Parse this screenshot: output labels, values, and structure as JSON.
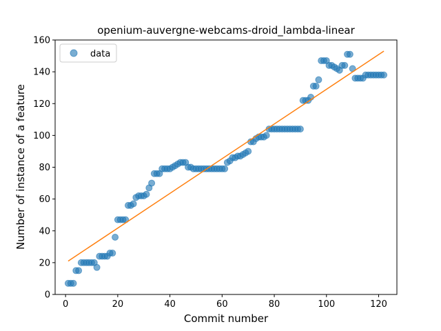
{
  "chart_data": {
    "type": "scatter",
    "title": "openium-auvergne-webcams-droid_lambda-linear",
    "xlabel": "Commit number",
    "ylabel": "Number of instance of a feature",
    "xlim": [
      -4,
      127
    ],
    "ylim": [
      0,
      160
    ],
    "xticks": [
      0,
      20,
      40,
      60,
      80,
      100,
      120
    ],
    "yticks": [
      0,
      20,
      40,
      60,
      80,
      100,
      120,
      140,
      160
    ],
    "legend_position": "top-left",
    "series": [
      {
        "name": "data",
        "kind": "scatter",
        "color": "#1f77b4",
        "x": [
          1,
          2,
          3,
          4,
          5,
          6,
          7,
          8,
          9,
          10,
          11,
          12,
          13,
          14,
          15,
          16,
          17,
          18,
          19,
          20,
          21,
          22,
          23,
          24,
          25,
          26,
          27,
          28,
          29,
          30,
          31,
          32,
          33,
          34,
          35,
          36,
          37,
          38,
          39,
          40,
          41,
          42,
          43,
          44,
          45,
          46,
          47,
          48,
          49,
          50,
          51,
          52,
          53,
          54,
          55,
          56,
          57,
          58,
          59,
          60,
          61,
          62,
          63,
          64,
          65,
          66,
          67,
          68,
          69,
          70,
          71,
          72,
          73,
          74,
          75,
          76,
          77,
          78,
          79,
          80,
          81,
          82,
          83,
          84,
          85,
          86,
          87,
          88,
          89,
          90,
          91,
          92,
          93,
          94,
          95,
          96,
          97,
          98,
          99,
          100,
          101,
          102,
          103,
          104,
          105,
          106,
          107,
          108,
          109,
          110,
          111,
          112,
          113,
          114,
          115,
          116,
          117,
          118,
          119,
          120,
          121,
          122
        ],
        "y": [
          7,
          7,
          7,
          15,
          15,
          20,
          20,
          20,
          20,
          20,
          20,
          17,
          24,
          24,
          24,
          24,
          26,
          26,
          36,
          47,
          47,
          47,
          47,
          56,
          56,
          57,
          61,
          62,
          62,
          62,
          63,
          67,
          70,
          76,
          76,
          76,
          79,
          79,
          79,
          79,
          80,
          81,
          82,
          83,
          83,
          83,
          80,
          80,
          79,
          79,
          79,
          79,
          79,
          79,
          79,
          79,
          79,
          79,
          79,
          79,
          79,
          83,
          84,
          86,
          86,
          87,
          87,
          88,
          89,
          90,
          96,
          96,
          98,
          99,
          99,
          99,
          100,
          104,
          104,
          104,
          104,
          104,
          104,
          104,
          104,
          104,
          104,
          104,
          104,
          104,
          122,
          122,
          122,
          124,
          131,
          131,
          135,
          147,
          147,
          147,
          144,
          144,
          143,
          142,
          141,
          144,
          144,
          151,
          151,
          142,
          136,
          136,
          136,
          136,
          138,
          138,
          138,
          138,
          138,
          138,
          138,
          138
        ]
      },
      {
        "name": "",
        "kind": "line",
        "color": "#ff7f0e",
        "x": [
          1,
          122
        ],
        "y": [
          21,
          153
        ]
      }
    ]
  }
}
